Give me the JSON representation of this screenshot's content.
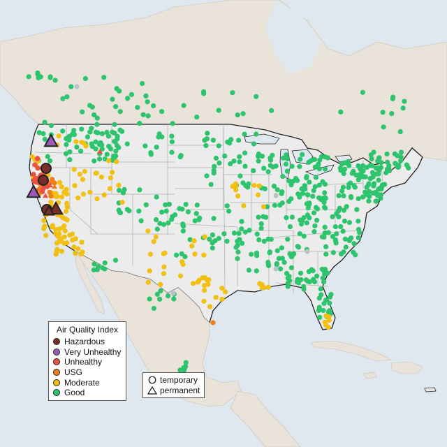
{
  "legend": {
    "title": "Air Quality Index",
    "categories": [
      {
        "label": "Hazardous",
        "color": "#7a2e2a"
      },
      {
        "label": "Very Unhealthy",
        "color": "#9c59b6"
      },
      {
        "label": "Unhealthy",
        "color": "#ea5143"
      },
      {
        "label": "USG",
        "color": "#ee7d1a"
      },
      {
        "label": "Moderate",
        "color": "#f2c012"
      },
      {
        "label": "Good",
        "color": "#2dc46d"
      }
    ]
  },
  "type_legend": {
    "items": [
      {
        "label": "temporary",
        "shape": "circle"
      },
      {
        "label": "permanent",
        "shape": "triangle"
      }
    ]
  },
  "colors": {
    "water": "#dfe8ee",
    "land_us": "#ececec",
    "land_other": "#e6dfd5",
    "no_data": "#b9c2cc"
  }
}
